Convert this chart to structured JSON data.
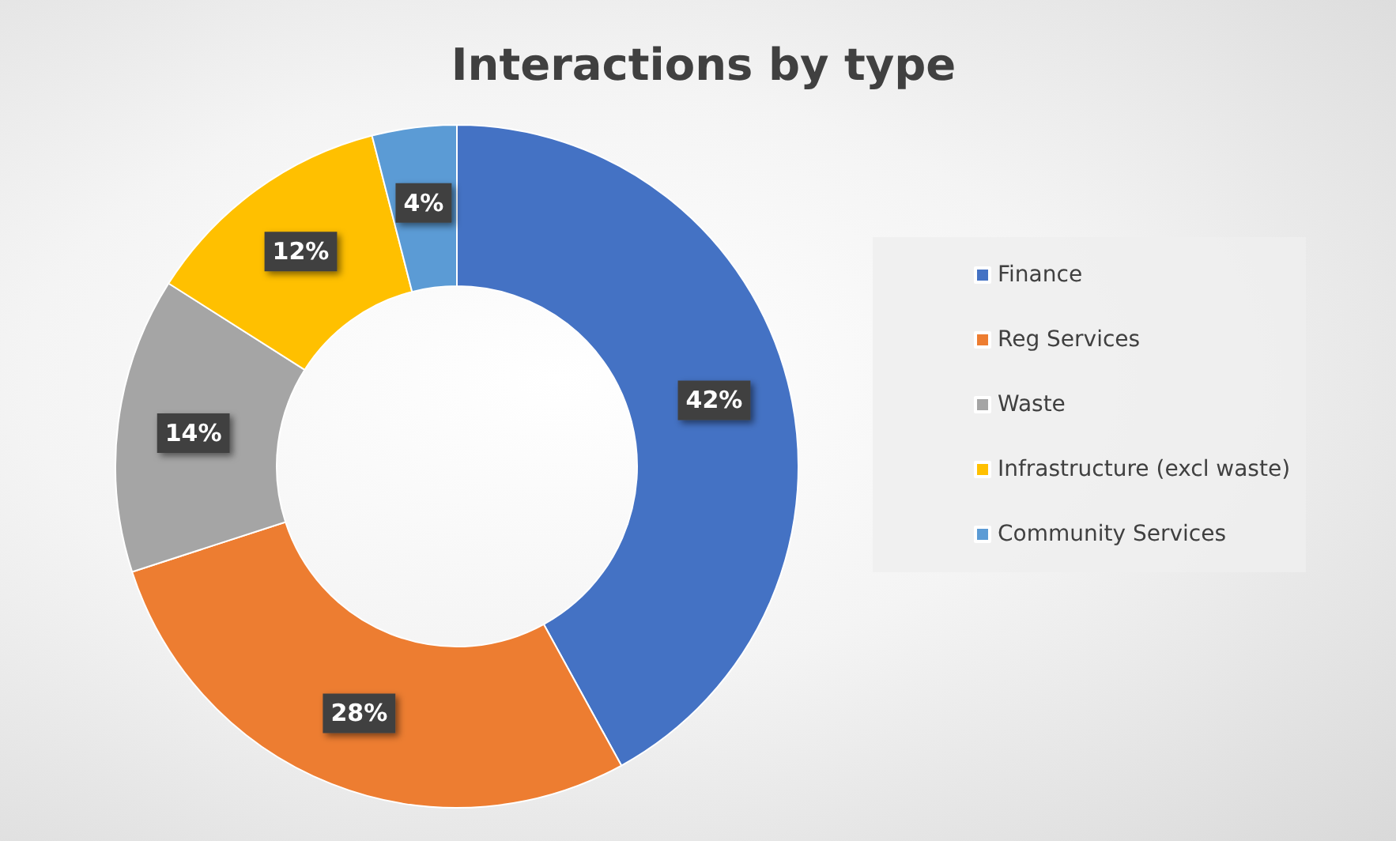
{
  "chart_data": {
    "type": "donut",
    "title": "Interactions by type",
    "categories": [
      "Finance",
      "Reg Services",
      "Waste",
      "Infrastructure (excl waste)",
      "Community Services"
    ],
    "values": [
      42,
      28,
      14,
      12,
      4
    ],
    "value_labels": [
      "42%",
      "28%",
      "14%",
      "12%",
      "4%"
    ],
    "colors": [
      "#4472c4",
      "#ed7d31",
      "#a5a5a5",
      "#ffc000",
      "#5b9bd5"
    ],
    "legend": "right"
  }
}
